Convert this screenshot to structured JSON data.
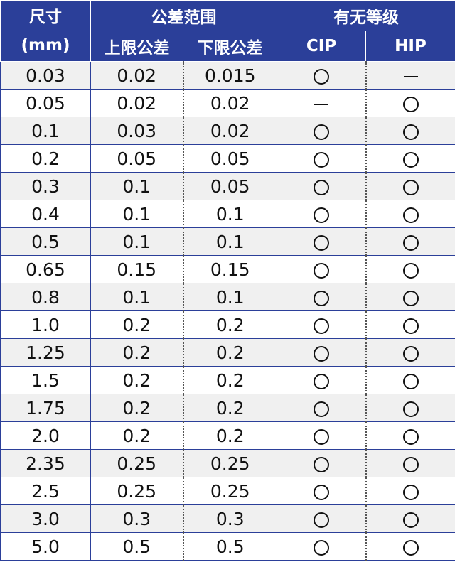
{
  "header": {
    "size_label": "尺寸",
    "size_unit": "(mm)",
    "tolerance_group": "公差范围",
    "upper_label": "上限公差",
    "lower_label": "下限公差",
    "grade_group": "有无等级",
    "cip_label": "CIP",
    "hip_label": "HIP"
  },
  "rows": [
    {
      "size": "0.03",
      "upper": "0.02",
      "lower": "0.015",
      "cip": "yes",
      "hip": "no"
    },
    {
      "size": "0.05",
      "upper": "0.02",
      "lower": "0.02",
      "cip": "no",
      "hip": "yes"
    },
    {
      "size": "0.1",
      "upper": "0.03",
      "lower": "0.02",
      "cip": "yes",
      "hip": "yes"
    },
    {
      "size": "0.2",
      "upper": "0.05",
      "lower": "0.05",
      "cip": "yes",
      "hip": "yes"
    },
    {
      "size": "0.3",
      "upper": "0.1",
      "lower": "0.05",
      "cip": "yes",
      "hip": "yes"
    },
    {
      "size": "0.4",
      "upper": "0.1",
      "lower": "0.1",
      "cip": "yes",
      "hip": "yes"
    },
    {
      "size": "0.5",
      "upper": "0.1",
      "lower": "0.1",
      "cip": "yes",
      "hip": "yes"
    },
    {
      "size": "0.65",
      "upper": "0.15",
      "lower": "0.15",
      "cip": "yes",
      "hip": "yes"
    },
    {
      "size": "0.8",
      "upper": "0.1",
      "lower": "0.1",
      "cip": "yes",
      "hip": "yes"
    },
    {
      "size": "1.0",
      "upper": "0.2",
      "lower": "0.2",
      "cip": "yes",
      "hip": "yes"
    },
    {
      "size": "1.25",
      "upper": "0.2",
      "lower": "0.2",
      "cip": "yes",
      "hip": "yes"
    },
    {
      "size": "1.5",
      "upper": "0.2",
      "lower": "0.2",
      "cip": "yes",
      "hip": "yes"
    },
    {
      "size": "1.75",
      "upper": "0.2",
      "lower": "0.2",
      "cip": "yes",
      "hip": "yes"
    },
    {
      "size": "2.0",
      "upper": "0.2",
      "lower": "0.2",
      "cip": "yes",
      "hip": "yes"
    },
    {
      "size": "2.35",
      "upper": "0.25",
      "lower": "0.25",
      "cip": "yes",
      "hip": "yes"
    },
    {
      "size": "2.5",
      "upper": "0.25",
      "lower": "0.25",
      "cip": "yes",
      "hip": "yes"
    },
    {
      "size": "3.0",
      "upper": "0.3",
      "lower": "0.3",
      "cip": "yes",
      "hip": "yes"
    },
    {
      "size": "5.0",
      "upper": "0.5",
      "lower": "0.5",
      "cip": "yes",
      "hip": "yes"
    }
  ],
  "icons": {
    "yes": "circle-icon",
    "no": "dash-icon"
  },
  "colors": {
    "header_bg": "#2b3f99",
    "header_text": "#ffffff",
    "stripe": "#f0f0f0",
    "grid": "#2b3f99"
  }
}
